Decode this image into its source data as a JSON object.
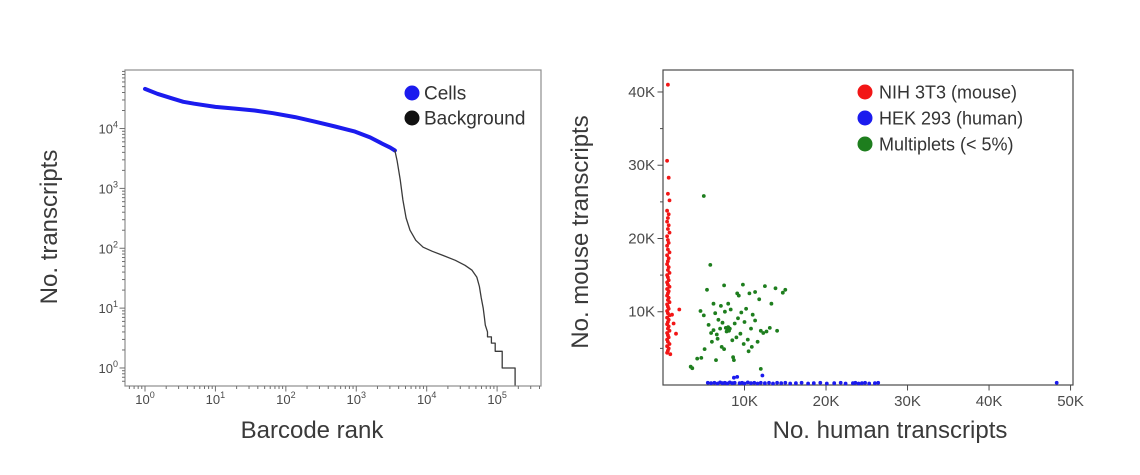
{
  "page": {
    "background": "#ffffff",
    "description": "Two-panel single-cell RNA-seq QC figure"
  },
  "colors": {
    "cells_blue": "#1b1bee",
    "background_black": "#111111",
    "background_line": "#3a3a3a",
    "mouse_red": "#f21616",
    "human_blue": "#1b1bee",
    "multiplet_green": "#1e7e1e",
    "axis_text": "#3a3a3a",
    "tick_text": "#4a4a4a"
  },
  "chart_data": [
    {
      "id": "barcode-rank",
      "type": "line",
      "title": "",
      "xlabel": "Barcode rank",
      "ylabel": "No. transcripts",
      "xscale": "log",
      "yscale": "log",
      "xlim": [
        0.52,
        420000
      ],
      "ylim": [
        0.5,
        95000
      ],
      "grid": false,
      "legend_position": "upper right",
      "x_ticks": [
        {
          "value": 1,
          "label": "10^0"
        },
        {
          "value": 10,
          "label": "10^1"
        },
        {
          "value": 100,
          "label": "10^2"
        },
        {
          "value": 1000,
          "label": "10^3"
        },
        {
          "value": 10000,
          "label": "10^4"
        },
        {
          "value": 100000,
          "label": "10^5"
        }
      ],
      "y_ticks": [
        {
          "value": 1,
          "label": "10^0"
        },
        {
          "value": 10,
          "label": "10^1"
        },
        {
          "value": 100,
          "label": "10^2"
        },
        {
          "value": 1000,
          "label": "10^3"
        },
        {
          "value": 10000,
          "label": "10^4"
        }
      ],
      "legend": [
        {
          "label": "Cells",
          "color": "#1b1bee"
        },
        {
          "label": "Background",
          "color": "#111111"
        }
      ],
      "series": [
        {
          "name": "Cells",
          "color": "#1b1bee",
          "line_width": 4,
          "points": [
            [
              1,
              46000
            ],
            [
              1.5,
              38000
            ],
            [
              2.5,
              31500
            ],
            [
              3.5,
              28000
            ],
            [
              5,
              26000
            ],
            [
              10,
              23000
            ],
            [
              19,
              21500
            ],
            [
              36,
              20000
            ],
            [
              66,
              18000
            ],
            [
              135,
              15500
            ],
            [
              260,
              13000
            ],
            [
              500,
              10800
            ],
            [
              960,
              8900
            ],
            [
              1570,
              7100
            ],
            [
              2330,
              5600
            ],
            [
              3030,
              4800
            ],
            [
              3540,
              4300
            ]
          ]
        },
        {
          "name": "Background",
          "color": "#3a3a3a",
          "line_width": 1.3,
          "points": [
            [
              3540,
              4300
            ],
            [
              3800,
              2900
            ],
            [
              4200,
              1400
            ],
            [
              4600,
              640
            ],
            [
              5100,
              320
            ],
            [
              5800,
              200
            ],
            [
              7000,
              136
            ],
            [
              8900,
              104
            ],
            [
              12000,
              89
            ],
            [
              17000,
              76
            ],
            [
              25500,
              63
            ],
            [
              35000,
              52
            ],
            [
              44000,
              43
            ],
            [
              51500,
              33
            ],
            [
              56000,
              23
            ],
            [
              59500,
              15
            ],
            [
              63500,
              10
            ],
            [
              66000,
              7
            ],
            [
              68000,
              5.2
            ],
            [
              73000,
              4
            ],
            [
              73000,
              3.3
            ],
            [
              83000,
              3.3
            ],
            [
              83000,
              2.6
            ],
            [
              94000,
              2.6
            ],
            [
              94000,
              1.9
            ],
            [
              118000,
              1.9
            ],
            [
              118000,
              1.0
            ],
            [
              180000,
              1.0
            ],
            [
              180000,
              0.52
            ]
          ]
        }
      ]
    },
    {
      "id": "species-mixing",
      "type": "scatter",
      "title": "",
      "xlabel": "No. human transcripts",
      "ylabel": "No. mouse transcripts",
      "xscale": "linear",
      "yscale": "linear",
      "xlim": [
        0,
        50300
      ],
      "ylim": [
        0,
        43000
      ],
      "grid": false,
      "legend_position": "upper right",
      "y_minor_step": 5000,
      "x_ticks": [
        {
          "value": 10000,
          "label": "10K"
        },
        {
          "value": 20000,
          "label": "20K"
        },
        {
          "value": 30000,
          "label": "30K"
        },
        {
          "value": 40000,
          "label": "40K"
        },
        {
          "value": 50000,
          "label": "50K"
        }
      ],
      "y_ticks": [
        {
          "value": 10000,
          "label": "10K"
        },
        {
          "value": 20000,
          "label": "20K"
        },
        {
          "value": 30000,
          "label": "30K"
        },
        {
          "value": 40000,
          "label": "40K"
        }
      ],
      "legend": [
        {
          "label": "NIH 3T3 (mouse)",
          "color": "#f21616"
        },
        {
          "label": "HEK 293 (human)",
          "color": "#1b1bee"
        },
        {
          "label": "Multiplets (< 5%)",
          "color": "#1e7e1e"
        }
      ],
      "series": [
        {
          "name": "NIH 3T3 (mouse)",
          "color": "#f21616",
          "marker_size": 1.9,
          "points": [
            [
              600,
              41000
            ],
            [
              500,
              30600
            ],
            [
              700,
              28300
            ],
            [
              600,
              26100
            ],
            [
              800,
              25200
            ],
            [
              500,
              23800
            ],
            [
              700,
              23300
            ],
            [
              600,
              22800
            ],
            [
              500,
              22300
            ],
            [
              700,
              21800
            ],
            [
              600,
              21300
            ],
            [
              800,
              20800
            ],
            [
              500,
              20300
            ],
            [
              600,
              19800
            ],
            [
              700,
              19400
            ],
            [
              500,
              19000
            ],
            [
              600,
              18500
            ],
            [
              800,
              18100
            ],
            [
              500,
              17700
            ],
            [
              700,
              17300
            ],
            [
              600,
              16900
            ],
            [
              500,
              16500
            ],
            [
              700,
              16100
            ],
            [
              600,
              15700
            ],
            [
              800,
              15300
            ],
            [
              500,
              15000
            ],
            [
              600,
              14700
            ],
            [
              700,
              14300
            ],
            [
              500,
              14000
            ],
            [
              600,
              13700
            ],
            [
              800,
              13400
            ],
            [
              500,
              13100
            ],
            [
              700,
              12800
            ],
            [
              600,
              12500
            ],
            [
              500,
              12200
            ],
            [
              700,
              11900
            ],
            [
              600,
              11600
            ],
            [
              800,
              11300
            ],
            [
              500,
              11000
            ],
            [
              600,
              10700
            ],
            [
              700,
              10400
            ],
            [
              500,
              10100
            ],
            [
              600,
              9800
            ],
            [
              800,
              9500
            ],
            [
              500,
              9200
            ],
            [
              700,
              8900
            ],
            [
              600,
              8600
            ],
            [
              500,
              8300
            ],
            [
              700,
              8000
            ],
            [
              600,
              7700
            ],
            [
              800,
              7400
            ],
            [
              500,
              7100
            ],
            [
              600,
              6800
            ],
            [
              700,
              6500
            ],
            [
              500,
              6200
            ],
            [
              600,
              5900
            ],
            [
              800,
              5600
            ],
            [
              500,
              5300
            ],
            [
              700,
              5000
            ],
            [
              600,
              4700
            ],
            [
              500,
              4400
            ],
            [
              900,
              4200
            ],
            [
              2000,
              10300
            ],
            [
              1300,
              8400
            ],
            [
              1100,
              9600
            ],
            [
              1600,
              7000
            ]
          ]
        },
        {
          "name": "HEK 293 (human)",
          "color": "#1b1bee",
          "marker_size": 1.9,
          "points": [
            [
              5500,
              300
            ],
            [
              5900,
              250
            ],
            [
              6300,
              300
            ],
            [
              6700,
              200
            ],
            [
              7000,
              350
            ],
            [
              7300,
              250
            ],
            [
              7600,
              300
            ],
            [
              7900,
              200
            ],
            [
              8200,
              350
            ],
            [
              8500,
              250
            ],
            [
              8700,
              1000
            ],
            [
              9100,
              1100
            ],
            [
              8800,
              300
            ],
            [
              9400,
              250
            ],
            [
              9700,
              300
            ],
            [
              10000,
              200
            ],
            [
              10400,
              350
            ],
            [
              10800,
              250
            ],
            [
              11200,
              300
            ],
            [
              11600,
              200
            ],
            [
              12000,
              300
            ],
            [
              12200,
              1300
            ],
            [
              12500,
              250
            ],
            [
              13000,
              300
            ],
            [
              13500,
              200
            ],
            [
              14000,
              300
            ],
            [
              14500,
              250
            ],
            [
              15000,
              300
            ],
            [
              15600,
              200
            ],
            [
              16300,
              250
            ],
            [
              17000,
              300
            ],
            [
              17800,
              200
            ],
            [
              18500,
              250
            ],
            [
              19300,
              300
            ],
            [
              20100,
              200
            ],
            [
              21000,
              250
            ],
            [
              21800,
              300
            ],
            [
              22400,
              200
            ],
            [
              23300,
              250
            ],
            [
              23600,
              300
            ],
            [
              24000,
              200
            ],
            [
              24400,
              250
            ],
            [
              24800,
              300
            ],
            [
              25300,
              200
            ],
            [
              26000,
              250
            ],
            [
              26400,
              300
            ],
            [
              48300,
              300
            ]
          ]
        },
        {
          "name": "Multiplets (< 5%)",
          "color": "#1e7e1e",
          "marker_size": 1.9,
          "points": [
            [
              5000,
              25800
            ],
            [
              5800,
              16400
            ],
            [
              5400,
              13000
            ],
            [
              7500,
              13600
            ],
            [
              9800,
              13700
            ],
            [
              10600,
              12500
            ],
            [
              11300,
              12700
            ],
            [
              9100,
              12500
            ],
            [
              9300,
              12200
            ],
            [
              14700,
              12600
            ],
            [
              13300,
              11100
            ],
            [
              6200,
              11100
            ],
            [
              7100,
              10800
            ],
            [
              8000,
              11100
            ],
            [
              7600,
              10000
            ],
            [
              8300,
              10300
            ],
            [
              5000,
              9500
            ],
            [
              9600,
              9900
            ],
            [
              10000,
              8600
            ],
            [
              10800,
              7700
            ],
            [
              11300,
              8800
            ],
            [
              12000,
              7400
            ],
            [
              12300,
              7100
            ],
            [
              14000,
              7400
            ],
            [
              7700,
              7800
            ],
            [
              7900,
              7600
            ],
            [
              8100,
              7400
            ],
            [
              7800,
              7300
            ],
            [
              8000,
              7900
            ],
            [
              8200,
              7700
            ],
            [
              6200,
              7500
            ],
            [
              6700,
              6300
            ],
            [
              6000,
              5900
            ],
            [
              7200,
              5200
            ],
            [
              7500,
              4900
            ],
            [
              5100,
              4900
            ],
            [
              8600,
              3800
            ],
            [
              8700,
              3400
            ],
            [
              6500,
              3400
            ],
            [
              4200,
              3600
            ],
            [
              3600,
              2300
            ],
            [
              12000,
              2200
            ],
            [
              10900,
              5200
            ],
            [
              10400,
              6200
            ],
            [
              11600,
              5900
            ],
            [
              12700,
              7300
            ],
            [
              13100,
              7800
            ],
            [
              9000,
              6500
            ],
            [
              9500,
              7000
            ],
            [
              8800,
              8400
            ],
            [
              9200,
              9100
            ],
            [
              10200,
              10400
            ],
            [
              11000,
              9600
            ],
            [
              6800,
              8900
            ],
            [
              6400,
              9800
            ],
            [
              5600,
              8200
            ],
            [
              5900,
              7100
            ],
            [
              6600,
              6900
            ],
            [
              7000,
              7700
            ],
            [
              7300,
              8500
            ],
            [
              8500,
              6100
            ],
            [
              9900,
              5600
            ],
            [
              10500,
              4600
            ],
            [
              3400,
              2500
            ],
            [
              4700,
              3700
            ],
            [
              13800,
              13200
            ],
            [
              15000,
              13000
            ],
            [
              12500,
              13500
            ],
            [
              11800,
              11700
            ],
            [
              4600,
              10100
            ]
          ]
        }
      ]
    }
  ]
}
